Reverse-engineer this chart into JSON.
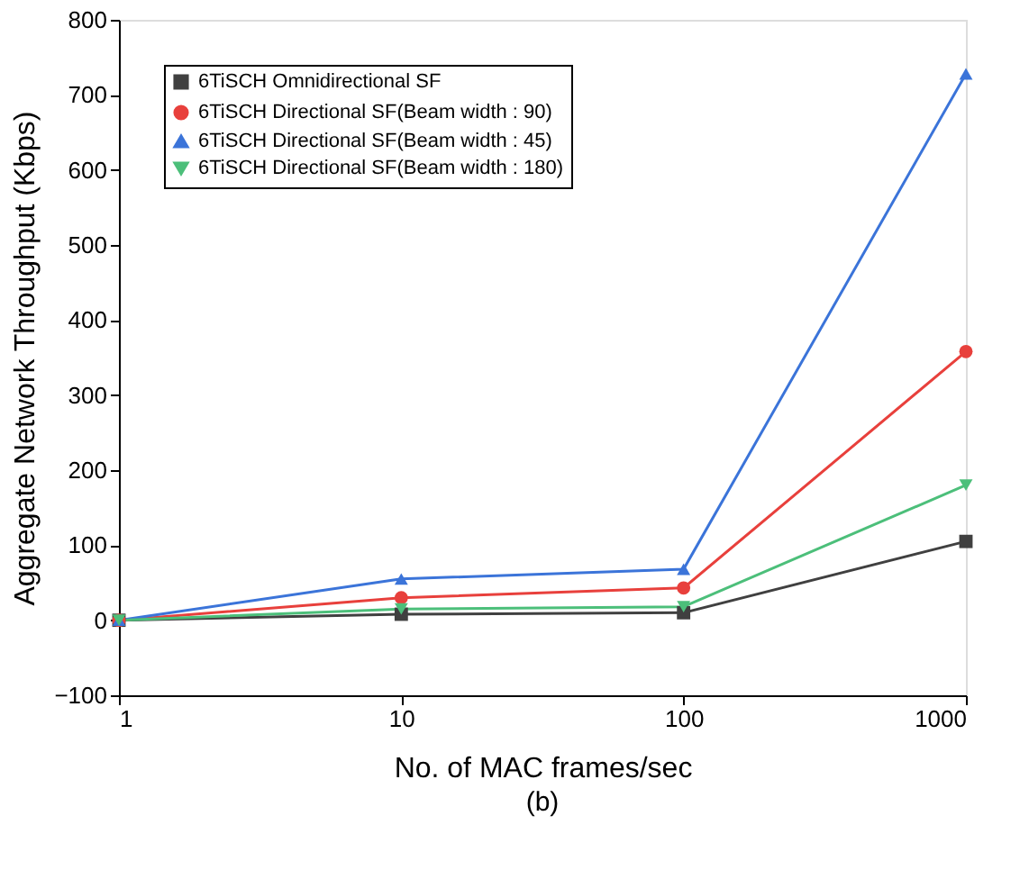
{
  "chart_data": {
    "type": "line",
    "xlabel": "No. of MAC frames/sec",
    "ylabel": "Aggregate Network Throughput (Kbps)",
    "annotations": [
      "(b)"
    ],
    "x": [
      1,
      10,
      100,
      1000
    ],
    "log": "x",
    "xlim": [
      1,
      1000
    ],
    "xticks": [
      1,
      10,
      100,
      1000
    ],
    "ylim": [
      -100,
      800
    ],
    "yticks": [
      -100,
      0,
      100,
      200,
      300,
      400,
      500,
      600,
      700,
      800
    ],
    "grid": false,
    "legend": "top left",
    "line_style": "solid",
    "series": [
      {
        "name": "6TiSCH Omnidirectional SF",
        "color": "#404040",
        "marker": "square",
        "values": [
          0,
          8,
          10,
          105
        ]
      },
      {
        "name": "6TiSCH Directional SF(Beam width : 90)",
        "color": "#e8403c",
        "marker": "circle",
        "values": [
          0,
          30,
          43,
          358
        ]
      },
      {
        "name": "6TiSCH Directional SF(Beam width : 45)",
        "color": "#3b74d9",
        "marker": "triangle",
        "values": [
          0,
          55,
          68,
          728
        ]
      },
      {
        "name": "6TiSCH Directional SF(Beam width : 180)",
        "color": "#4cbf7a",
        "marker": "triangle-down",
        "values": [
          0,
          15,
          18,
          180
        ]
      }
    ]
  }
}
